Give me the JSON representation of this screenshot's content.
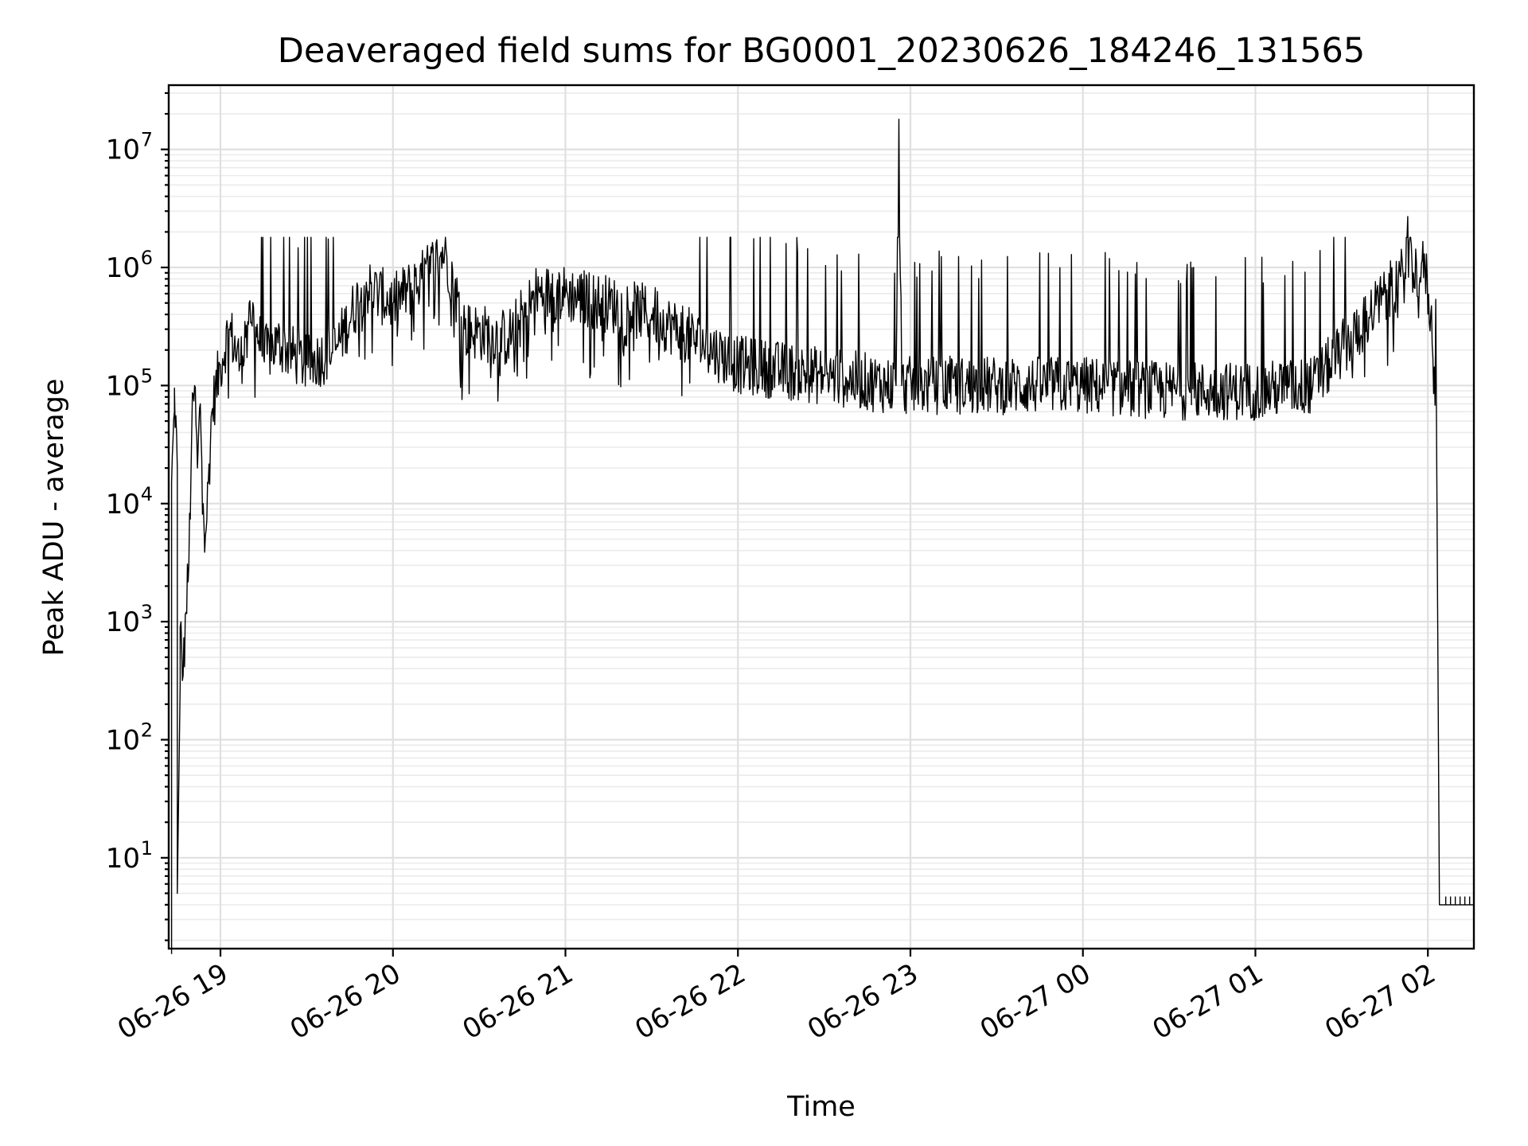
{
  "chart_data": {
    "type": "line",
    "title": "Deaveraged field sums for BG0001_20230626_184246_131565",
    "xlabel": "Time",
    "ylabel": "Peak ADU - average",
    "yscale": "log",
    "ylim": [
      1.7,
      35000000
    ],
    "xlim": [
      "2023-06-26 18:42",
      "2023-06-27 02:16"
    ],
    "grid": true,
    "x_ticks": [
      "06-26 19",
      "06-26 20",
      "06-26 21",
      "06-26 22",
      "06-26 23",
      "06-27 00",
      "06-27 01",
      "06-27 02"
    ],
    "y_ticks": [
      {
        "base": "10",
        "exp": "1",
        "value": 10
      },
      {
        "base": "10",
        "exp": "2",
        "value": 100
      },
      {
        "base": "10",
        "exp": "3",
        "value": 1000
      },
      {
        "base": "10",
        "exp": "4",
        "value": 10000
      },
      {
        "base": "10",
        "exp": "5",
        "value": 100000
      },
      {
        "base": "10",
        "exp": "6",
        "value": 1000000
      },
      {
        "base": "10",
        "exp": "7",
        "value": 10000000
      }
    ],
    "series": [
      {
        "color": "#000000",
        "points": [
          [
            "2023-06-26 18:43",
            1.5
          ],
          [
            "2023-06-26 18:43",
            15000
          ],
          [
            "2023-06-26 18:44",
            60000
          ],
          [
            "2023-06-26 18:44",
            95000
          ],
          [
            "2023-06-26 18:45",
            20000
          ],
          [
            "2023-06-26 18:45",
            5
          ],
          [
            "2023-06-26 18:46",
            300
          ],
          [
            "2023-06-26 18:46",
            900
          ],
          [
            "2023-06-26 18:47",
            350
          ],
          [
            "2023-06-26 18:48",
            1200
          ],
          [
            "2023-06-26 18:49",
            3000
          ],
          [
            "2023-06-26 18:50",
            40000
          ],
          [
            "2023-06-26 18:51",
            100000
          ],
          [
            "2023-06-26 18:52",
            20000
          ],
          [
            "2023-06-26 18:53",
            70000
          ],
          [
            "2023-06-26 18:54",
            10000
          ],
          [
            "2023-06-26 18:55",
            6000
          ],
          [
            "2023-06-26 18:57",
            60000
          ],
          [
            "2023-06-26 19:00",
            150000
          ],
          [
            "2023-06-26 19:03",
            300000
          ],
          [
            "2023-06-26 19:07",
            150000
          ],
          [
            "2023-06-26 19:10",
            500000
          ],
          [
            "2023-06-26 19:15",
            180000
          ],
          [
            "2023-06-26 19:20",
            230000
          ],
          [
            "2023-06-26 19:30",
            150000
          ],
          [
            "2023-06-26 19:40",
            200000
          ],
          [
            "2023-06-26 19:50",
            700000
          ],
          [
            "2023-06-26 20:00",
            500000
          ],
          [
            "2023-06-26 20:10",
            800000
          ],
          [
            "2023-06-26 20:18",
            1400000
          ],
          [
            "2023-06-26 20:25",
            300000
          ],
          [
            "2023-06-26 20:40",
            250000
          ],
          [
            "2023-06-26 20:50",
            600000
          ],
          [
            "2023-06-26 21:00",
            600000
          ],
          [
            "2023-06-26 21:30",
            400000
          ],
          [
            "2023-06-26 22:00",
            150000
          ],
          [
            "2023-06-26 22:30",
            120000
          ],
          [
            "2023-06-26 22:55",
            100000
          ],
          [
            "2023-06-26 22:56",
            18000000
          ],
          [
            "2023-06-26 22:57",
            100000
          ],
          [
            "2023-06-26 23:30",
            100000
          ],
          [
            "2023-06-27 00:00",
            100000
          ],
          [
            "2023-06-27 00:30",
            90000
          ],
          [
            "2023-06-27 01:00",
            90000
          ],
          [
            "2023-06-27 01:20",
            100000
          ],
          [
            "2023-06-27 01:40",
            400000
          ],
          [
            "2023-06-27 01:52",
            900000
          ],
          [
            "2023-06-27 01:53",
            2700000
          ],
          [
            "2023-06-27 01:55",
            900000
          ],
          [
            "2023-06-27 01:59",
            1000000
          ],
          [
            "2023-06-27 02:01",
            400000
          ],
          [
            "2023-06-27 02:03",
            50000
          ],
          [
            "2023-06-27 02:04",
            4
          ],
          [
            "2023-06-27 02:16",
            4
          ]
        ]
      }
    ]
  }
}
